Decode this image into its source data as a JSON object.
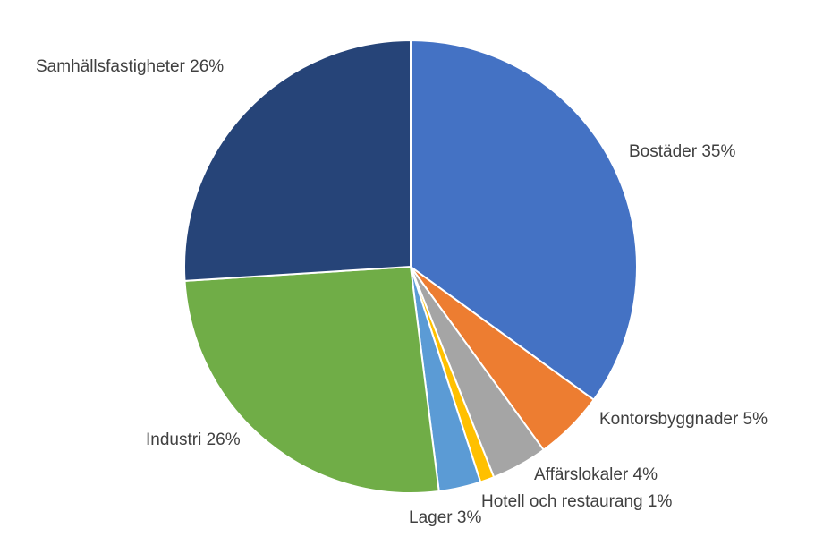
{
  "chart_data": {
    "type": "pie",
    "title": "",
    "slices": [
      {
        "name": "Bostäder",
        "value": 35,
        "label": "Bostäder 35%",
        "color": "#4472C4"
      },
      {
        "name": "Kontorsbyggnader",
        "value": 5,
        "label": "Kontorsbyggnader 5%",
        "color": "#ED7D31"
      },
      {
        "name": "Affärslokaler",
        "value": 4,
        "label": "Affärslokaler 4%",
        "color": "#A5A5A5"
      },
      {
        "name": "Hotell och restaurang",
        "value": 1,
        "label": "Hotell och restaurang 1%",
        "color": "#FFC000"
      },
      {
        "name": "Lager",
        "value": 3,
        "label": "Lager 3%",
        "color": "#5B9BD5"
      },
      {
        "name": "Industri",
        "value": 26,
        "label": "Industri 26%",
        "color": "#70AD47"
      },
      {
        "name": "Samhällsfastigheter",
        "value": 26,
        "label": "Samhällsfastigheter 26%",
        "color": "#264478"
      }
    ],
    "legend": "none",
    "labels": "outside"
  }
}
